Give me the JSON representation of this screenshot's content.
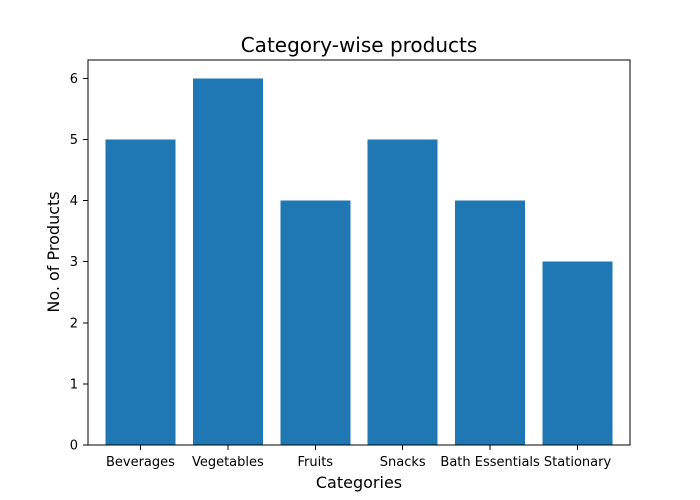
{
  "chart_data": {
    "type": "bar",
    "title": "Category-wise products",
    "xlabel": "Categories",
    "ylabel": "No. of Products",
    "categories": [
      "Beverages",
      "Vegetables",
      "Fruits",
      "Snacks",
      "Bath Essentials",
      "Stationary"
    ],
    "values": [
      5,
      6,
      4,
      5,
      4,
      3
    ],
    "ylim": [
      0,
      6.3
    ],
    "yticks": [
      0,
      1,
      2,
      3,
      4,
      5,
      6
    ],
    "grid": false,
    "bar_color": "#1f77b4"
  }
}
